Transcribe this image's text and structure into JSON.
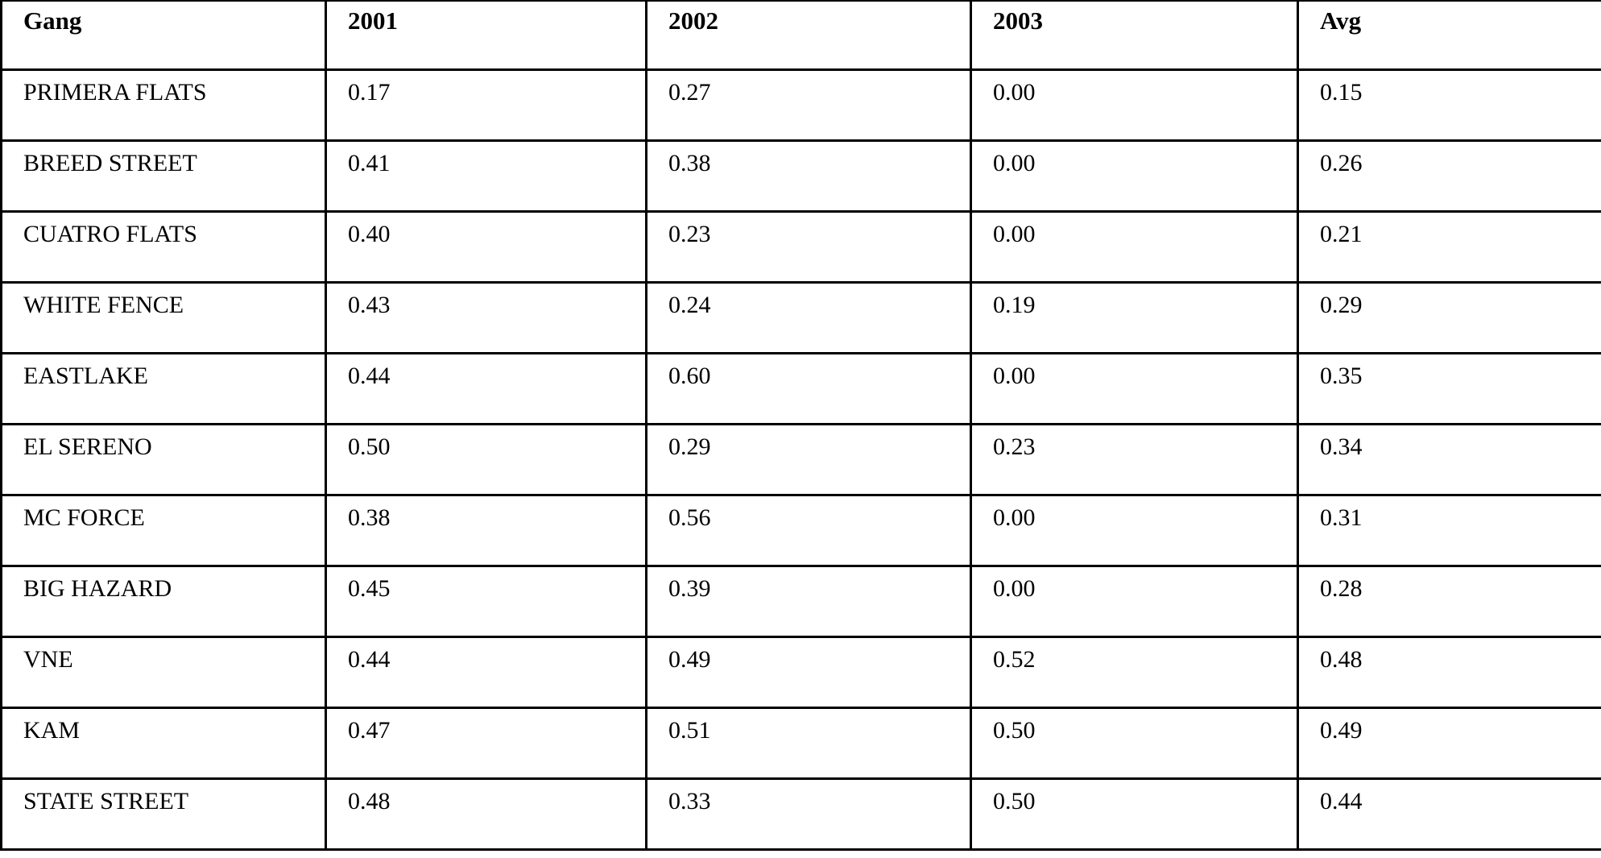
{
  "table": {
    "columns": [
      "Gang",
      "2001",
      "2002",
      "2003",
      "Avg"
    ],
    "rows": [
      {
        "gang": "PRIMERA FLATS",
        "values": [
          "0.17",
          "0.27",
          "0.00",
          "0.15"
        ]
      },
      {
        "gang": "BREED STREET",
        "values": [
          "0.41",
          "0.38",
          "0.00",
          "0.26"
        ]
      },
      {
        "gang": "CUATRO FLATS",
        "values": [
          "0.40",
          "0.23",
          "0.00",
          "0.21"
        ]
      },
      {
        "gang": "WHITE FENCE",
        "values": [
          "0.43",
          "0.24",
          "0.19",
          "0.29"
        ]
      },
      {
        "gang": "EASTLAKE",
        "values": [
          "0.44",
          "0.60",
          "0.00",
          "0.35"
        ]
      },
      {
        "gang": "EL SERENO",
        "values": [
          "0.50",
          "0.29",
          "0.23",
          "0.34"
        ]
      },
      {
        "gang": "MC FORCE",
        "values": [
          "0.38",
          "0.56",
          "0.00",
          "0.31"
        ]
      },
      {
        "gang": "BIG HAZARD",
        "values": [
          "0.45",
          "0.39",
          "0.00",
          "0.28"
        ]
      },
      {
        "gang": "VNE",
        "values": [
          "0.44",
          "0.49",
          "0.52",
          "0.48"
        ]
      },
      {
        "gang": "KAM",
        "values": [
          "0.47",
          "0.51",
          "0.50",
          "0.49"
        ]
      },
      {
        "gang": "STATE STREET",
        "values": [
          "0.48",
          "0.33",
          "0.50",
          "0.44"
        ]
      }
    ]
  },
  "chart_data": {
    "type": "table",
    "title": "",
    "columns": [
      "Gang",
      "2001",
      "2002",
      "2003",
      "Avg"
    ],
    "rows": [
      [
        "PRIMERA FLATS",
        0.17,
        0.27,
        0.0,
        0.15
      ],
      [
        "BREED STREET",
        0.41,
        0.38,
        0.0,
        0.26
      ],
      [
        "CUATRO FLATS",
        0.4,
        0.23,
        0.0,
        0.21
      ],
      [
        "WHITE FENCE",
        0.43,
        0.24,
        0.19,
        0.29
      ],
      [
        "EASTLAKE",
        0.44,
        0.6,
        0.0,
        0.35
      ],
      [
        "EL SERENO",
        0.5,
        0.29,
        0.23,
        0.34
      ],
      [
        "MC FORCE",
        0.38,
        0.56,
        0.0,
        0.31
      ],
      [
        "BIG HAZARD",
        0.45,
        0.39,
        0.0,
        0.28
      ],
      [
        "VNE",
        0.44,
        0.49,
        0.52,
        0.48
      ],
      [
        "KAM",
        0.47,
        0.51,
        0.5,
        0.49
      ],
      [
        "STATE STREET",
        0.48,
        0.33,
        0.5,
        0.44
      ]
    ]
  },
  "colors": {
    "text": "#000000",
    "border": "#000000",
    "background": "#ffffff"
  }
}
